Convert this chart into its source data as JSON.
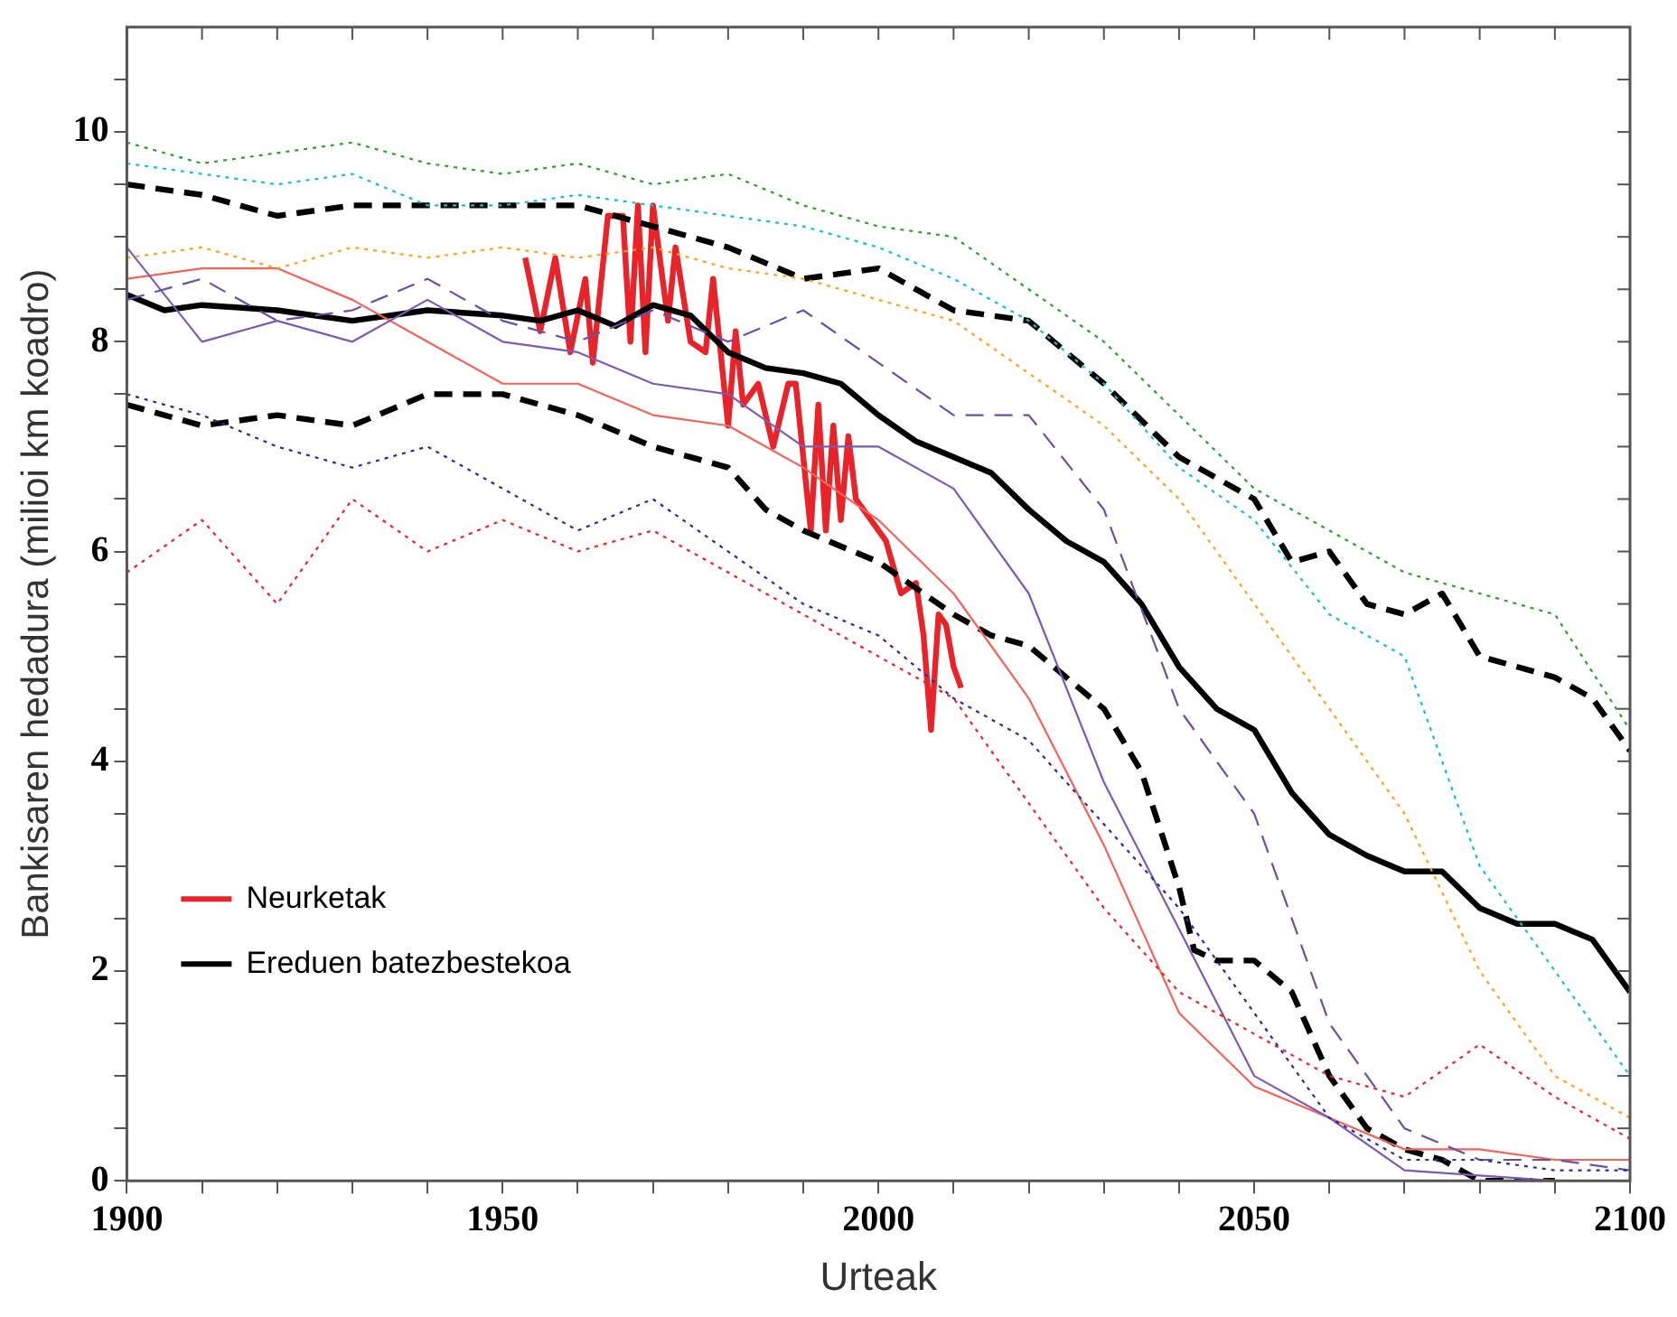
{
  "chart_data": {
    "type": "line",
    "xlabel": "Urteak",
    "ylabel": "Bankisaren hedadura (milioi km koadro)",
    "x": [
      1900,
      1910,
      1920,
      1930,
      1940,
      1950,
      1960,
      1970,
      1980,
      1990,
      2000,
      2010,
      2020,
      2030,
      2040,
      2050,
      2060,
      2070,
      2080,
      2090,
      2100
    ],
    "xlim": [
      1900,
      2100
    ],
    "xticks": [
      1900,
      {
        "value": 1910,
        "label": null
      },
      {
        "value": 1920,
        "label": null
      },
      {
        "value": 1930,
        "label": null
      },
      {
        "value": 1940,
        "label": null
      },
      1950,
      {
        "value": 1960,
        "label": null
      },
      {
        "value": 1970,
        "label": null
      },
      {
        "value": 1980,
        "label": null
      },
      {
        "value": 1990,
        "label": null
      },
      2000,
      {
        "value": 2010,
        "label": null
      },
      {
        "value": 2020,
        "label": null
      },
      {
        "value": 2030,
        "label": null
      },
      {
        "value": 2040,
        "label": null
      },
      2050,
      {
        "value": 2060,
        "label": null
      },
      {
        "value": 2070,
        "label": null
      },
      {
        "value": 2080,
        "label": null
      },
      {
        "value": 2090,
        "label": null
      },
      2100
    ],
    "ylim": [
      0,
      11
    ],
    "yticks": [
      0,
      {
        "value": 0.5,
        "label": null
      },
      2,
      {
        "value": 1,
        "label": null
      },
      {
        "value": 1.5,
        "label": null
      },
      {
        "value": 2.5,
        "label": null
      },
      {
        "value": 3,
        "label": null
      },
      {
        "value": 3.5,
        "label": null
      },
      4,
      {
        "value": 4.5,
        "label": null
      },
      {
        "value": 5,
        "label": null
      },
      {
        "value": 5.5,
        "label": null
      },
      6,
      {
        "value": 6.5,
        "label": null
      },
      {
        "value": 7,
        "label": null
      },
      {
        "value": 7.5,
        "label": null
      },
      8,
      {
        "value": 8.5,
        "label": null
      },
      {
        "value": 9,
        "label": null
      },
      {
        "value": 9.5,
        "label": null
      },
      10,
      {
        "value": 10.5,
        "label": null
      }
    ],
    "grid": false,
    "legend": "bottom left",
    "marker": "none",
    "series": [
      {
        "color": "#2ca02c",
        "line_style": "dotted",
        "values": [
          9.9,
          9.7,
          9.8,
          9.9,
          9.7,
          9.6,
          9.7,
          9.5,
          9.6,
          9.3,
          9.1,
          9.0,
          8.5,
          8.0,
          7.3,
          6.6,
          6.2,
          5.8,
          5.6,
          5.4,
          4.3
        ]
      },
      {
        "color": "#17becf",
        "line_style": "dotted",
        "values": [
          9.7,
          9.6,
          9.5,
          9.6,
          9.3,
          9.3,
          9.4,
          9.3,
          9.2,
          9.1,
          8.9,
          8.6,
          8.2,
          7.6,
          6.8,
          6.3,
          5.4,
          5.0,
          3.0,
          2.0,
          1.0
        ]
      },
      {
        "color": "#ff9f1c",
        "line_style": "dotted",
        "values": [
          8.8,
          8.9,
          8.7,
          8.9,
          8.8,
          8.9,
          8.8,
          8.9,
          8.7,
          8.6,
          8.4,
          8.2,
          7.7,
          7.2,
          6.5,
          5.5,
          4.5,
          3.5,
          2.0,
          1.0,
          0.6
        ]
      },
      {
        "color": "#e8232a",
        "line_style": "dotted",
        "values": [
          5.8,
          6.3,
          5.5,
          6.5,
          6.0,
          6.3,
          6.0,
          6.2,
          5.8,
          5.4,
          5.0,
          4.6,
          3.6,
          2.6,
          1.8,
          1.4,
          1.0,
          0.8,
          1.3,
          0.8,
          0.4
        ]
      },
      {
        "color": "#2b2b9a",
        "line_style": "dotted",
        "values": [
          7.5,
          7.3,
          7.0,
          6.8,
          7.0,
          6.6,
          6.2,
          6.5,
          6.0,
          5.5,
          5.2,
          4.6,
          4.2,
          3.4,
          2.6,
          1.6,
          0.6,
          0.2,
          0.2,
          0.1,
          0.1
        ]
      },
      {
        "color": "#6a4fa3",
        "line_style": "dashed",
        "values": [
          8.4,
          8.6,
          8.2,
          8.3,
          8.6,
          8.2,
          8.0,
          8.3,
          8.0,
          8.3,
          7.8,
          7.3,
          7.3,
          6.4,
          4.5,
          3.5,
          1.5,
          0.5,
          0.2,
          0.2,
          0.1
        ]
      },
      {
        "color": "#7b5cb0",
        "line_style": "solid",
        "values": [
          8.9,
          8.0,
          8.2,
          8.0,
          8.4,
          8.0,
          7.9,
          7.6,
          7.5,
          7.0,
          7.0,
          6.6,
          5.6,
          3.8,
          2.4,
          1.0,
          0.6,
          0.1,
          0.05,
          0.0,
          null
        ]
      },
      {
        "color": "#f0645a",
        "line_style": "solid",
        "values": [
          8.6,
          8.7,
          8.7,
          8.4,
          8.0,
          7.6,
          7.6,
          7.3,
          7.2,
          6.8,
          6.3,
          5.6,
          4.6,
          3.2,
          1.6,
          0.9,
          0.6,
          0.3,
          0.3,
          0.2,
          0.2
        ]
      },
      {
        "color": "#000000",
        "line_style": "dashed",
        "x": [
          1900,
          1910,
          1920,
          1930,
          1940,
          1950,
          1960,
          1970,
          1980,
          1990,
          2000,
          2010,
          2020,
          2025,
          2030,
          2040,
          2050,
          2055,
          2060,
          2065,
          2070,
          2075,
          2080,
          2085,
          2090,
          2095,
          2100
        ],
        "values": [
          9.5,
          9.4,
          9.2,
          9.3,
          9.3,
          9.3,
          9.3,
          9.1,
          8.9,
          8.6,
          8.7,
          8.3,
          8.2,
          7.9,
          7.6,
          6.9,
          6.5,
          5.9,
          6.0,
          5.5,
          5.4,
          5.6,
          5.0,
          4.9,
          4.8,
          4.6,
          4.1
        ]
      },
      {
        "color": "#000000",
        "line_style": "dashed",
        "x": [
          1900,
          1910,
          1920,
          1930,
          1940,
          1950,
          1960,
          1970,
          1980,
          1985,
          1990,
          2000,
          2010,
          2015,
          2020,
          2025,
          2030,
          2035,
          2040,
          2042,
          2045,
          2050,
          2055,
          2060,
          2065,
          2070,
          2075,
          2080,
          2090
        ],
        "values": [
          7.4,
          7.2,
          7.3,
          7.2,
          7.5,
          7.5,
          7.3,
          7.0,
          6.8,
          6.4,
          6.2,
          5.9,
          5.4,
          5.2,
          5.1,
          4.8,
          4.5,
          3.9,
          2.8,
          2.2,
          2.1,
          2.1,
          1.8,
          1.0,
          0.5,
          0.3,
          0.2,
          0.0,
          0.0
        ]
      },
      {
        "name": "Ereduen batezbestekoa",
        "color": "#000000",
        "line_style": "solid",
        "x": [
          1900,
          1905,
          1910,
          1920,
          1930,
          1940,
          1950,
          1955,
          1960,
          1965,
          1970,
          1975,
          1980,
          1985,
          1990,
          1995,
          2000,
          2005,
          2010,
          2015,
          2020,
          2025,
          2030,
          2035,
          2040,
          2045,
          2050,
          2055,
          2060,
          2065,
          2070,
          2075,
          2080,
          2085,
          2090,
          2095,
          2100
        ],
        "values": [
          8.45,
          8.3,
          8.35,
          8.3,
          8.2,
          8.3,
          8.25,
          8.2,
          8.3,
          8.15,
          8.35,
          8.25,
          7.9,
          7.75,
          7.7,
          7.6,
          7.3,
          7.05,
          6.9,
          6.75,
          6.4,
          6.1,
          5.9,
          5.5,
          4.9,
          4.5,
          4.3,
          3.7,
          3.3,
          3.1,
          2.95,
          2.95,
          2.6,
          2.45,
          2.45,
          2.3,
          1.8
        ]
      },
      {
        "name": "Neurketak",
        "color": "#e8232a",
        "line_style": "solid",
        "x": [
          1953,
          1955,
          1957,
          1959,
          1961,
          1962,
          1964,
          1966,
          1967,
          1968,
          1969,
          1970,
          1972,
          1973,
          1975,
          1977,
          1978,
          1980,
          1981,
          1982,
          1984,
          1986,
          1988,
          1989,
          1991,
          1992,
          1993,
          1994,
          1995,
          1996,
          1997,
          1999,
          2001,
          2003,
          2005,
          2006,
          2007,
          2008,
          2009,
          2010,
          2011
        ],
        "values": [
          8.8,
          8.1,
          8.8,
          7.9,
          8.6,
          7.8,
          9.2,
          9.2,
          8.0,
          9.3,
          7.9,
          9.3,
          8.2,
          8.9,
          8.0,
          7.9,
          8.6,
          7.2,
          8.1,
          7.4,
          7.6,
          7.0,
          7.6,
          7.6,
          6.2,
          7.4,
          6.2,
          7.2,
          6.3,
          7.1,
          6.5,
          6.3,
          6.1,
          5.6,
          5.7,
          5.2,
          4.3,
          5.4,
          5.3,
          4.9,
          4.7
        ]
      }
    ]
  }
}
